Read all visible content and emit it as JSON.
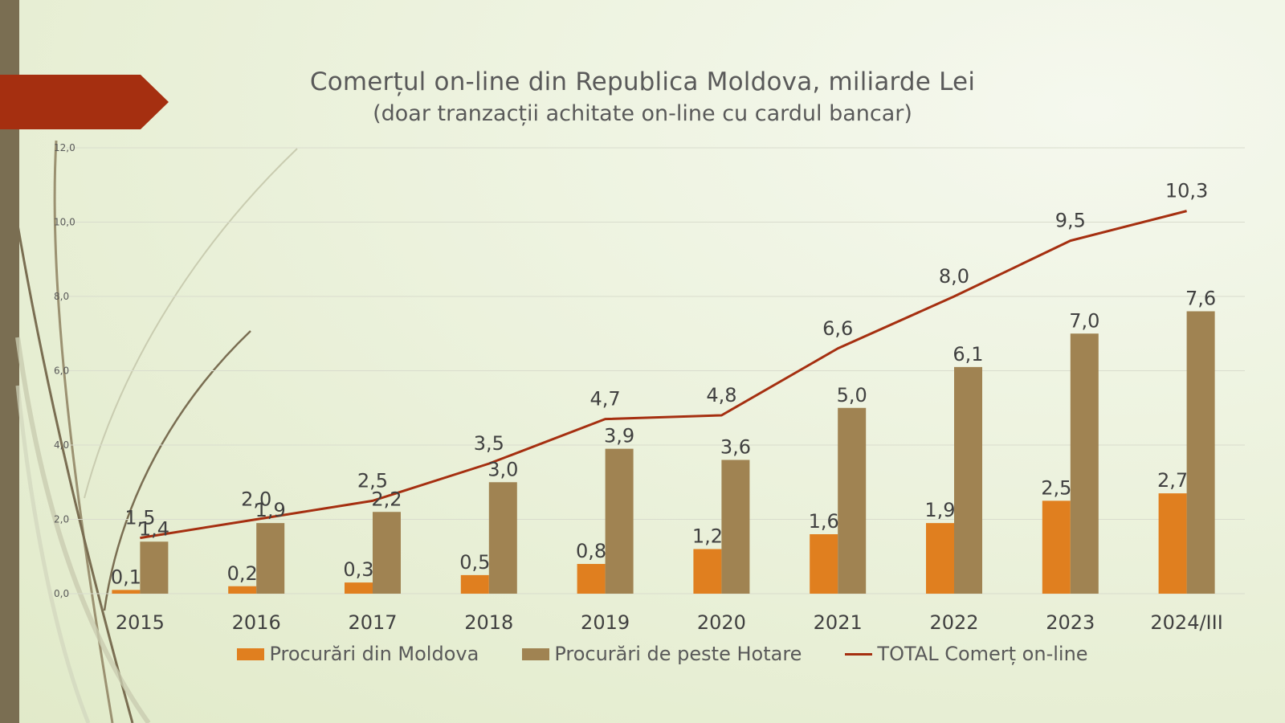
{
  "title": "Comerțul on-line din Republica Moldova, miliarde Lei",
  "subtitle": "(doar tranzacții achitate on-line cu cardul bancar)",
  "colors": {
    "moldova": "#e07f1f",
    "hotare": "#a08352",
    "total": "#a52f10",
    "grid": "#d9dccd"
  },
  "chart_data": {
    "type": "bar",
    "categories": [
      "2015",
      "2016",
      "2017",
      "2018",
      "2019",
      "2020",
      "2021",
      "2022",
      "2023",
      "2024/III"
    ],
    "ylim": [
      0,
      12
    ],
    "yticks": [
      "0,0",
      "2,0",
      "4,0",
      "6,0",
      "8,0",
      "10,0",
      "12,0"
    ],
    "ytick_values": [
      0,
      2,
      4,
      6,
      8,
      10,
      12
    ],
    "grid": true,
    "legend_position": "bottom",
    "series": [
      {
        "name": "Procurări din Moldova",
        "type": "bar",
        "values": [
          0.1,
          0.2,
          0.3,
          0.5,
          0.8,
          1.2,
          1.6,
          1.9,
          2.5,
          2.7
        ],
        "labels": [
          "0,1",
          "0,2",
          "0,3",
          "0,5",
          "0,8",
          "1,2",
          "1,6",
          "1,9",
          "2,5",
          "2,7"
        ]
      },
      {
        "name": "Procurări de peste Hotare",
        "type": "bar",
        "values": [
          1.4,
          1.9,
          2.2,
          3.0,
          3.9,
          3.6,
          5.0,
          6.1,
          7.0,
          7.6
        ],
        "labels": [
          "1,4",
          "1,9",
          "2,2",
          "3,0",
          "3,9",
          "3,6",
          "5,0",
          "6,1",
          "7,0",
          "7,6"
        ]
      },
      {
        "name": "TOTAL Comerț on-line",
        "type": "line",
        "values": [
          1.5,
          2.0,
          2.5,
          3.5,
          4.7,
          4.8,
          6.6,
          8.0,
          9.5,
          10.3
        ],
        "labels": [
          "1,5",
          "2,0",
          "2,5",
          "3,5",
          "4,7",
          "4,8",
          "6,6",
          "8,0",
          "9,5",
          "10,3"
        ]
      }
    ]
  }
}
